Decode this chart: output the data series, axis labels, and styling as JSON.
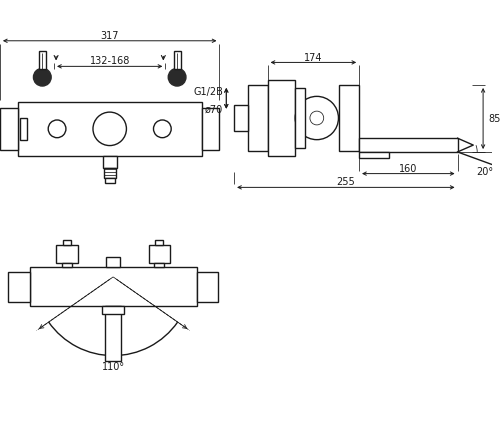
{
  "fig_width": 5.0,
  "fig_height": 4.21,
  "dpi": 100,
  "bg_color": "#ffffff",
  "lc": "#1a1a1a",
  "lw": 1.0,
  "lw_thin": 0.55,
  "fs": 7.0,
  "dims": {
    "front_width": "317",
    "front_spacing": "132-168",
    "g12b": "G1/2B",
    "phi70": "ø70",
    "d174": "174",
    "d160": "160",
    "d255": "255",
    "d85": "85",
    "ang20": "20°",
    "ang110": "110°"
  }
}
